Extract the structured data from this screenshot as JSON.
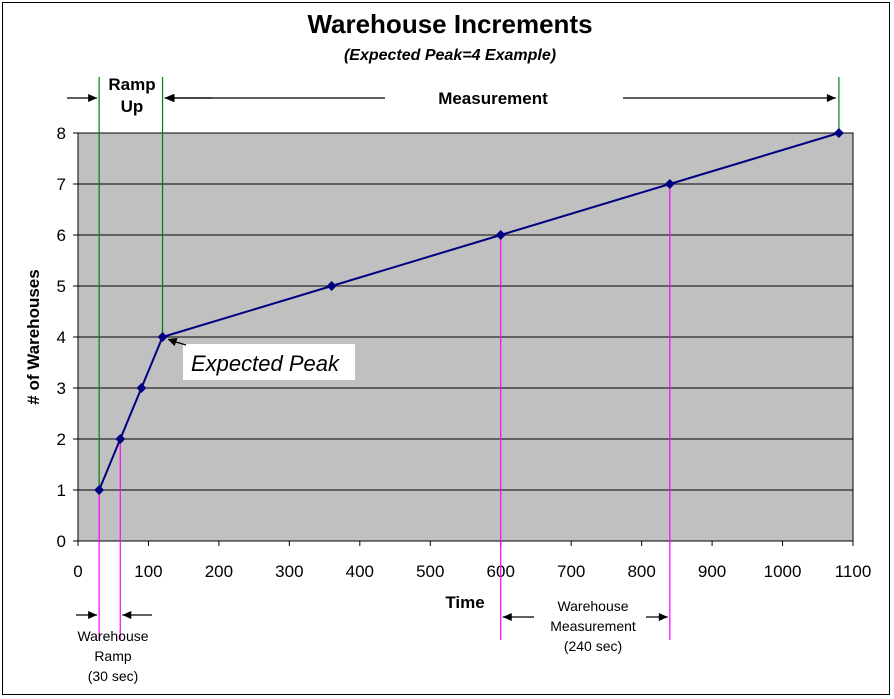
{
  "chart_data": {
    "type": "line",
    "title": "Warehouse Increments",
    "subtitle": "(Expected Peak=4 Example)",
    "xlabel": "Time",
    "ylabel": "# of Warehouses",
    "xlim": [
      0,
      1100
    ],
    "ylim": [
      0,
      8
    ],
    "xticks": [
      0,
      100,
      200,
      300,
      400,
      500,
      600,
      700,
      800,
      900,
      1000,
      1100
    ],
    "yticks": [
      0,
      1,
      2,
      3,
      4,
      5,
      6,
      7,
      8
    ],
    "grid": "horizontal",
    "plot_background": "#c0c0c0",
    "series": [
      {
        "x": [
          30,
          60,
          90,
          120,
          360,
          600,
          840,
          1080
        ],
        "y": [
          1,
          2,
          3,
          4,
          5,
          6,
          7,
          8
        ],
        "color": "#000080"
      }
    ],
    "phases": {
      "ramp_up": "Ramp\nUp",
      "measurement": "Measurement"
    },
    "annotations": {
      "expected_peak": "Expected Peak",
      "warehouse_ramp": "Warehouse\nRamp\n(30 sec)",
      "warehouse_measurement": "Warehouse\nMeasurement\n(240 sec)"
    },
    "colors": {
      "ramp_lines": "#008000",
      "measurement_lines": "#ff00ff",
      "marker": "#000080"
    }
  }
}
